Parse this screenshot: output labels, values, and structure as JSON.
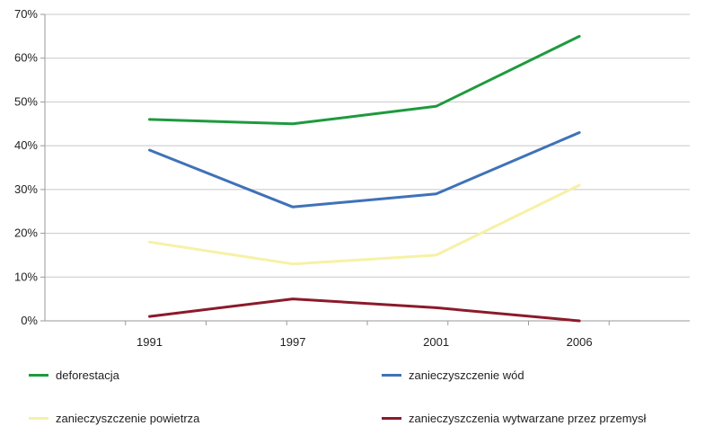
{
  "chart_data": {
    "type": "line",
    "title": "",
    "xlabel": "",
    "ylabel": "",
    "categories": [
      "1991",
      "1997",
      "2001",
      "2006"
    ],
    "y_ticks": [
      "0%",
      "10%",
      "20%",
      "30%",
      "40%",
      "50%",
      "60%",
      "70%"
    ],
    "ylim": [
      0,
      70
    ],
    "grid": true,
    "legend_position": "bottom",
    "series": [
      {
        "name": "deforestacja",
        "color": "#1e9a3e",
        "values": [
          46,
          45,
          49,
          65
        ]
      },
      {
        "name": "zanieczyszczenie wód",
        "color": "#3f72b8",
        "values": [
          39,
          26,
          29,
          43
        ]
      },
      {
        "name": "zanieczyszczenie powietrza",
        "color": "#f7f1a6",
        "values": [
          18,
          13,
          15,
          31
        ]
      },
      {
        "name": "zanieczyszczenia wytwarzane przez przemysł",
        "color": "#8b1a2a",
        "values": [
          1,
          5,
          3,
          0
        ]
      }
    ]
  }
}
